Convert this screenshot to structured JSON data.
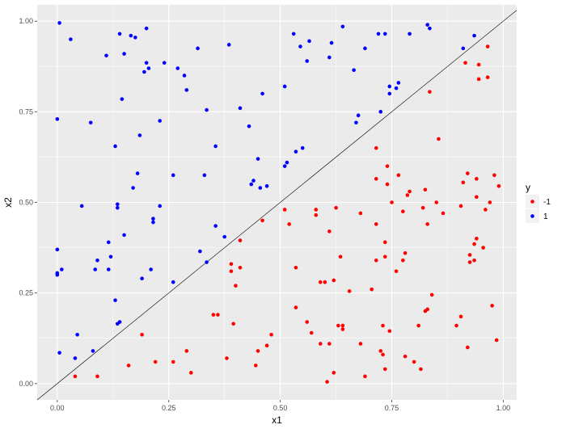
{
  "chart_data": {
    "type": "scatter",
    "title": "",
    "xlabel": "x1",
    "ylabel": "x2",
    "xlim": [
      -0.045,
      1.03
    ],
    "ylim": [
      -0.045,
      1.045
    ],
    "x_ticks": [
      0.0,
      0.25,
      0.5,
      0.75,
      1.0
    ],
    "x_tick_labels": [
      "0.00",
      "0.25",
      "0.50",
      "0.75",
      "1.00"
    ],
    "y_ticks": [
      0.0,
      0.25,
      0.5,
      0.75,
      1.0
    ],
    "y_tick_labels": [
      "0.00",
      "0.25",
      "0.50",
      "0.75",
      "1.00"
    ],
    "grid": true,
    "panel_background": "#ebebeb",
    "grid_color": "#ffffff",
    "reference_line": {
      "intercept": 0,
      "slope": 1,
      "color": "#000000"
    },
    "legend": {
      "title": "y",
      "placement": "right",
      "entries": [
        {
          "label": "-1",
          "color": "#ff0000"
        },
        {
          "label": "1",
          "color": "#0000ff"
        }
      ]
    },
    "series": [
      {
        "name": "-1",
        "color": "#ff0000",
        "points": [
          [
            0.04,
            0.02
          ],
          [
            0.09,
            0.02
          ],
          [
            0.16,
            0.05
          ],
          [
            0.19,
            0.135
          ],
          [
            0.22,
            0.06
          ],
          [
            0.26,
            0.06
          ],
          [
            0.29,
            0.09
          ],
          [
            0.3,
            0.03
          ],
          [
            0.35,
            0.19
          ],
          [
            0.36,
            0.19
          ],
          [
            0.38,
            0.07
          ],
          [
            0.39,
            0.31
          ],
          [
            0.39,
            0.33
          ],
          [
            0.395,
            0.165
          ],
          [
            0.4,
            0.27
          ],
          [
            0.41,
            0.32
          ],
          [
            0.41,
            0.395
          ],
          [
            0.445,
            0.05
          ],
          [
            0.45,
            0.09
          ],
          [
            0.46,
            0.45
          ],
          [
            0.47,
            0.105
          ],
          [
            0.48,
            0.135
          ],
          [
            0.51,
            0.48
          ],
          [
            0.52,
            0.44
          ],
          [
            0.535,
            0.32
          ],
          [
            0.535,
            0.21
          ],
          [
            0.56,
            0.17
          ],
          [
            0.57,
            0.14
          ],
          [
            0.58,
            0.48
          ],
          [
            0.58,
            0.465
          ],
          [
            0.59,
            0.11
          ],
          [
            0.59,
            0.28
          ],
          [
            0.6,
            0.28
          ],
          [
            0.605,
            0.005
          ],
          [
            0.61,
            0.11
          ],
          [
            0.61,
            0.42
          ],
          [
            0.62,
            0.03
          ],
          [
            0.62,
            0.285
          ],
          [
            0.625,
            0.485
          ],
          [
            0.63,
            0.16
          ],
          [
            0.635,
            0.35
          ],
          [
            0.64,
            0.15
          ],
          [
            0.64,
            0.16
          ],
          [
            0.655,
            0.255
          ],
          [
            0.68,
            0.11
          ],
          [
            0.68,
            0.47
          ],
          [
            0.69,
            0.02
          ],
          [
            0.705,
            0.26
          ],
          [
            0.715,
            0.34
          ],
          [
            0.715,
            0.44
          ],
          [
            0.715,
            0.565
          ],
          [
            0.715,
            0.65
          ],
          [
            0.725,
            0.09
          ],
          [
            0.73,
            0.08
          ],
          [
            0.73,
            0.16
          ],
          [
            0.735,
            0.04
          ],
          [
            0.735,
            0.39
          ],
          [
            0.735,
            0.35
          ],
          [
            0.74,
            0.55
          ],
          [
            0.74,
            0.6
          ],
          [
            0.745,
            0.145
          ],
          [
            0.75,
            0.5
          ],
          [
            0.76,
            0.31
          ],
          [
            0.765,
            0.575
          ],
          [
            0.775,
            0.34
          ],
          [
            0.775,
            0.475
          ],
          [
            0.78,
            0.075
          ],
          [
            0.78,
            0.36
          ],
          [
            0.785,
            0.52
          ],
          [
            0.79,
            0.53
          ],
          [
            0.8,
            0.06
          ],
          [
            0.81,
            0.16
          ],
          [
            0.815,
            0.04
          ],
          [
            0.82,
            0.485
          ],
          [
            0.825,
            0.535
          ],
          [
            0.825,
            0.2
          ],
          [
            0.83,
            0.205
          ],
          [
            0.83,
            0.44
          ],
          [
            0.835,
            0.805
          ],
          [
            0.84,
            0.245
          ],
          [
            0.85,
            0.5
          ],
          [
            0.855,
            0.675
          ],
          [
            0.865,
            0.47
          ],
          [
            0.895,
            0.16
          ],
          [
            0.905,
            0.185
          ],
          [
            0.905,
            0.49
          ],
          [
            0.91,
            0.555
          ],
          [
            0.915,
            0.885
          ],
          [
            0.92,
            0.1
          ],
          [
            0.92,
            0.58
          ],
          [
            0.925,
            0.355
          ],
          [
            0.925,
            0.335
          ],
          [
            0.935,
            0.385
          ],
          [
            0.935,
            0.34
          ],
          [
            0.94,
            0.4
          ],
          [
            0.94,
            0.515
          ],
          [
            0.94,
            0.565
          ],
          [
            0.945,
            0.84
          ],
          [
            0.945,
            0.88
          ],
          [
            0.955,
            0.375
          ],
          [
            0.96,
            0.48
          ],
          [
            0.965,
            0.845
          ],
          [
            0.965,
            0.93
          ],
          [
            0.97,
            0.5
          ],
          [
            0.975,
            0.215
          ],
          [
            0.98,
            0.575
          ],
          [
            0.985,
            0.12
          ],
          [
            0.99,
            0.545
          ]
        ]
      },
      {
        "name": "1",
        "color": "#0000ff",
        "points": [
          [
            0.0,
            0.73
          ],
          [
            0.0,
            0.37
          ],
          [
            0.0,
            0.3
          ],
          [
            0.0,
            0.305
          ],
          [
            0.005,
            0.995
          ],
          [
            0.005,
            0.085
          ],
          [
            0.01,
            0.315
          ],
          [
            0.03,
            0.95
          ],
          [
            0.04,
            0.07
          ],
          [
            0.045,
            0.135
          ],
          [
            0.055,
            0.49
          ],
          [
            0.075,
            0.72
          ],
          [
            0.08,
            0.09
          ],
          [
            0.085,
            0.315
          ],
          [
            0.09,
            0.34
          ],
          [
            0.11,
            0.905
          ],
          [
            0.115,
            0.315
          ],
          [
            0.115,
            0.39
          ],
          [
            0.12,
            0.35
          ],
          [
            0.13,
            0.655
          ],
          [
            0.13,
            0.23
          ],
          [
            0.135,
            0.485
          ],
          [
            0.135,
            0.495
          ],
          [
            0.135,
            0.165
          ],
          [
            0.14,
            0.965
          ],
          [
            0.14,
            0.17
          ],
          [
            0.145,
            0.785
          ],
          [
            0.15,
            0.41
          ],
          [
            0.15,
            0.91
          ],
          [
            0.165,
            0.96
          ],
          [
            0.17,
            0.54
          ],
          [
            0.175,
            0.955
          ],
          [
            0.18,
            0.58
          ],
          [
            0.185,
            0.685
          ],
          [
            0.19,
            0.29
          ],
          [
            0.195,
            0.86
          ],
          [
            0.2,
            0.885
          ],
          [
            0.2,
            0.98
          ],
          [
            0.205,
            0.87
          ],
          [
            0.21,
            0.315
          ],
          [
            0.215,
            0.455
          ],
          [
            0.215,
            0.445
          ],
          [
            0.23,
            0.725
          ],
          [
            0.23,
            0.49
          ],
          [
            0.24,
            0.885
          ],
          [
            0.26,
            0.575
          ],
          [
            0.26,
            0.28
          ],
          [
            0.27,
            0.87
          ],
          [
            0.285,
            0.85
          ],
          [
            0.29,
            0.81
          ],
          [
            0.315,
            0.925
          ],
          [
            0.32,
            0.365
          ],
          [
            0.33,
            0.575
          ],
          [
            0.335,
            0.755
          ],
          [
            0.335,
            0.335
          ],
          [
            0.355,
            0.655
          ],
          [
            0.355,
            0.435
          ],
          [
            0.375,
            0.405
          ],
          [
            0.385,
            0.935
          ],
          [
            0.41,
            0.76
          ],
          [
            0.43,
            0.71
          ],
          [
            0.435,
            0.55
          ],
          [
            0.44,
            0.56
          ],
          [
            0.45,
            0.62
          ],
          [
            0.455,
            0.54
          ],
          [
            0.46,
            0.8
          ],
          [
            0.47,
            0.545
          ],
          [
            0.51,
            0.82
          ],
          [
            0.51,
            0.6
          ],
          [
            0.515,
            0.61
          ],
          [
            0.53,
            0.965
          ],
          [
            0.535,
            0.64
          ],
          [
            0.545,
            0.93
          ],
          [
            0.55,
            0.65
          ],
          [
            0.56,
            0.89
          ],
          [
            0.565,
            0.945
          ],
          [
            0.61,
            0.9
          ],
          [
            0.615,
            0.94
          ],
          [
            0.64,
            0.985
          ],
          [
            0.665,
            0.865
          ],
          [
            0.67,
            0.72
          ],
          [
            0.675,
            0.74
          ],
          [
            0.69,
            0.925
          ],
          [
            0.72,
            0.965
          ],
          [
            0.725,
            0.75
          ],
          [
            0.735,
            0.965
          ],
          [
            0.745,
            0.82
          ],
          [
            0.745,
            0.8
          ],
          [
            0.76,
            0.815
          ],
          [
            0.765,
            0.83
          ],
          [
            0.79,
            0.965
          ],
          [
            0.83,
            0.99
          ],
          [
            0.835,
            0.98
          ],
          [
            0.91,
            0.925
          ],
          [
            0.935,
            0.96
          ]
        ]
      }
    ]
  }
}
